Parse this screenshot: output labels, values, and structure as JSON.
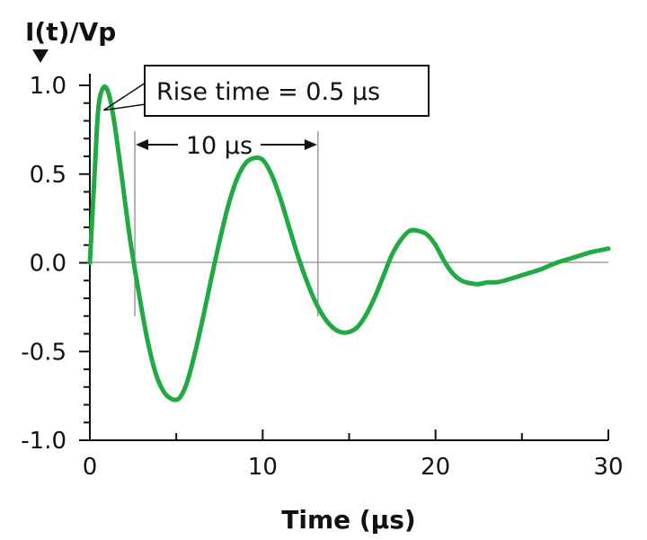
{
  "chart_data": {
    "type": "line",
    "xlabel": "Time (µs)",
    "ylabel": "I(t)/Vp",
    "xlim": [
      0,
      30
    ],
    "ylim": [
      -1.0,
      1.0
    ],
    "x_ticks": [
      0,
      10,
      20,
      30
    ],
    "x_tick_labels": [
      "0",
      "10",
      "20",
      "30"
    ],
    "y_ticks": [
      1.0,
      0.5,
      0.0,
      -0.5,
      -1.0
    ],
    "y_tick_labels": [
      "1.0",
      "0.5",
      "0.0",
      "-0.5",
      "-1.0"
    ],
    "grid": false,
    "series_color": "#1faa44",
    "series": [
      {
        "x": [
          0,
          0.3,
          0.5,
          0.8,
          1.1,
          1.4,
          1.8,
          2.3,
          2.8,
          3.3,
          3.8,
          4.3,
          4.8,
          5.2,
          5.6,
          6.0,
          6.5,
          7.0,
          7.5,
          8.0,
          8.5,
          9.0,
          9.5,
          10.0,
          10.5,
          11.0,
          11.5,
          12.0,
          12.5,
          13.0,
          13.5,
          14.0,
          14.5,
          15.0,
          15.5,
          16.0,
          16.5,
          17.0,
          17.5,
          18.0,
          18.5,
          19.0,
          19.5,
          20.0,
          20.5,
          21.0,
          21.5,
          22.0,
          22.5,
          23.0,
          23.5,
          24.0,
          25.0,
          26.0,
          27.0,
          28.0,
          29.0,
          30.0
        ],
        "y": [
          0.0,
          0.55,
          0.88,
          0.99,
          0.95,
          0.8,
          0.52,
          0.15,
          -0.15,
          -0.42,
          -0.62,
          -0.73,
          -0.77,
          -0.76,
          -0.68,
          -0.54,
          -0.33,
          -0.1,
          0.12,
          0.32,
          0.47,
          0.56,
          0.59,
          0.58,
          0.5,
          0.37,
          0.21,
          0.05,
          -0.09,
          -0.21,
          -0.3,
          -0.36,
          -0.39,
          -0.39,
          -0.36,
          -0.29,
          -0.19,
          -0.07,
          0.05,
          0.13,
          0.18,
          0.18,
          0.16,
          0.1,
          0.01,
          -0.06,
          -0.1,
          -0.115,
          -0.12,
          -0.11,
          -0.11,
          -0.1,
          -0.07,
          -0.04,
          0.0,
          0.03,
          0.06,
          0.08
        ]
      }
    ],
    "annotations": {
      "rise_time_label": "Rise time = 0.5 µs",
      "rise_time_point": {
        "x": 0.8,
        "y": 0.86
      },
      "period_label": "10 µs",
      "period_start": 2.6,
      "period_end": 13.2
    }
  }
}
